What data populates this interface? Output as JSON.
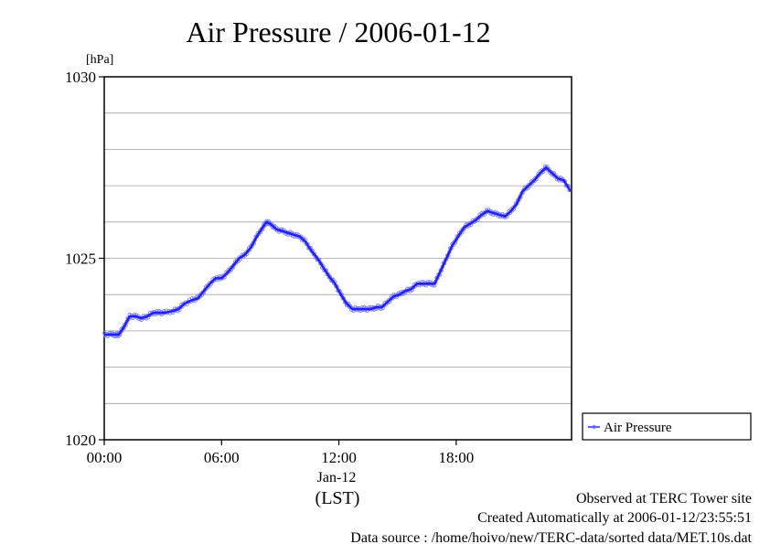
{
  "chart_data": {
    "type": "line",
    "title": "Air Pressure / 2006-01-12",
    "ylabel": "[hPa]",
    "xlabel": "(LST)",
    "date_label": "Jan-12",
    "xlim": [
      0,
      23.9
    ],
    "ylim": [
      1020,
      1030
    ],
    "x_ticks": [
      {
        "value": 0,
        "label": "00:00"
      },
      {
        "value": 6,
        "label": "06:00"
      },
      {
        "value": 12,
        "label": "12:00"
      },
      {
        "value": 18,
        "label": "18:00"
      }
    ],
    "y_ticks": [
      {
        "value": 1020,
        "label": "1020"
      },
      {
        "value": 1025,
        "label": "1025"
      },
      {
        "value": 1030,
        "label": "1030"
      }
    ],
    "y_grid": [
      1021,
      1022,
      1023,
      1024,
      1025,
      1026,
      1027,
      1028,
      1029
    ],
    "grid": true,
    "legend_position": "right-outside",
    "series": [
      {
        "name": "Air Pressure",
        "color": "#2020ff",
        "marker_color": "#8080ff",
        "x": [
          0,
          0.35,
          0.6,
          0.75,
          1.0,
          1.3,
          1.6,
          1.9,
          2.2,
          2.5,
          2.8,
          3.1,
          3.5,
          3.8,
          4.1,
          4.5,
          4.8,
          5.1,
          5.4,
          5.7,
          6.0,
          6.3,
          6.6,
          6.9,
          7.2,
          7.5,
          7.8,
          8.1,
          8.3,
          8.5,
          8.8,
          9.1,
          9.4,
          9.7,
          10.0,
          10.3,
          10.6,
          10.9,
          11.2,
          11.5,
          11.8,
          12.1,
          12.4,
          12.7,
          13.0,
          13.3,
          13.6,
          13.9,
          14.2,
          14.5,
          14.8,
          15.1,
          15.4,
          15.7,
          16.0,
          16.3,
          16.6,
          16.9,
          17.2,
          17.5,
          17.8,
          18.1,
          18.4,
          18.7,
          19.0,
          19.3,
          19.6,
          19.9,
          20.2,
          20.5,
          20.8,
          21.1,
          21.4,
          21.7,
          22.0,
          22.3,
          22.6,
          22.9,
          23.2,
          23.5,
          23.85
        ],
        "y": [
          1022.9,
          1022.9,
          1022.9,
          1022.9,
          1023.1,
          1023.4,
          1023.4,
          1023.35,
          1023.4,
          1023.5,
          1023.5,
          1023.5,
          1023.55,
          1023.6,
          1023.75,
          1023.85,
          1023.9,
          1024.1,
          1024.3,
          1024.45,
          1024.45,
          1024.6,
          1024.8,
          1025.0,
          1025.1,
          1025.3,
          1025.6,
          1025.85,
          1026.0,
          1025.95,
          1025.8,
          1025.75,
          1025.7,
          1025.65,
          1025.6,
          1025.45,
          1025.2,
          1025.0,
          1024.75,
          1024.5,
          1024.3,
          1024.0,
          1023.75,
          1023.6,
          1023.6,
          1023.6,
          1023.6,
          1023.65,
          1023.65,
          1023.8,
          1023.95,
          1024.0,
          1024.1,
          1024.15,
          1024.3,
          1024.3,
          1024.3,
          1024.3,
          1024.65,
          1025.0,
          1025.35,
          1025.6,
          1025.85,
          1025.95,
          1026.05,
          1026.2,
          1026.3,
          1026.25,
          1026.2,
          1026.15,
          1026.3,
          1026.5,
          1026.85,
          1027.0,
          1027.15,
          1027.35,
          1027.5,
          1027.35,
          1027.2,
          1027.15,
          1026.85
        ]
      }
    ]
  },
  "footer": {
    "observed": "Observed at TERC Tower site",
    "created": "Created Automatically at 2006-01-12/23:55:51",
    "source": "Data source : /home/hoivo/new/TERC-data/sorted data/MET.10s.dat"
  }
}
